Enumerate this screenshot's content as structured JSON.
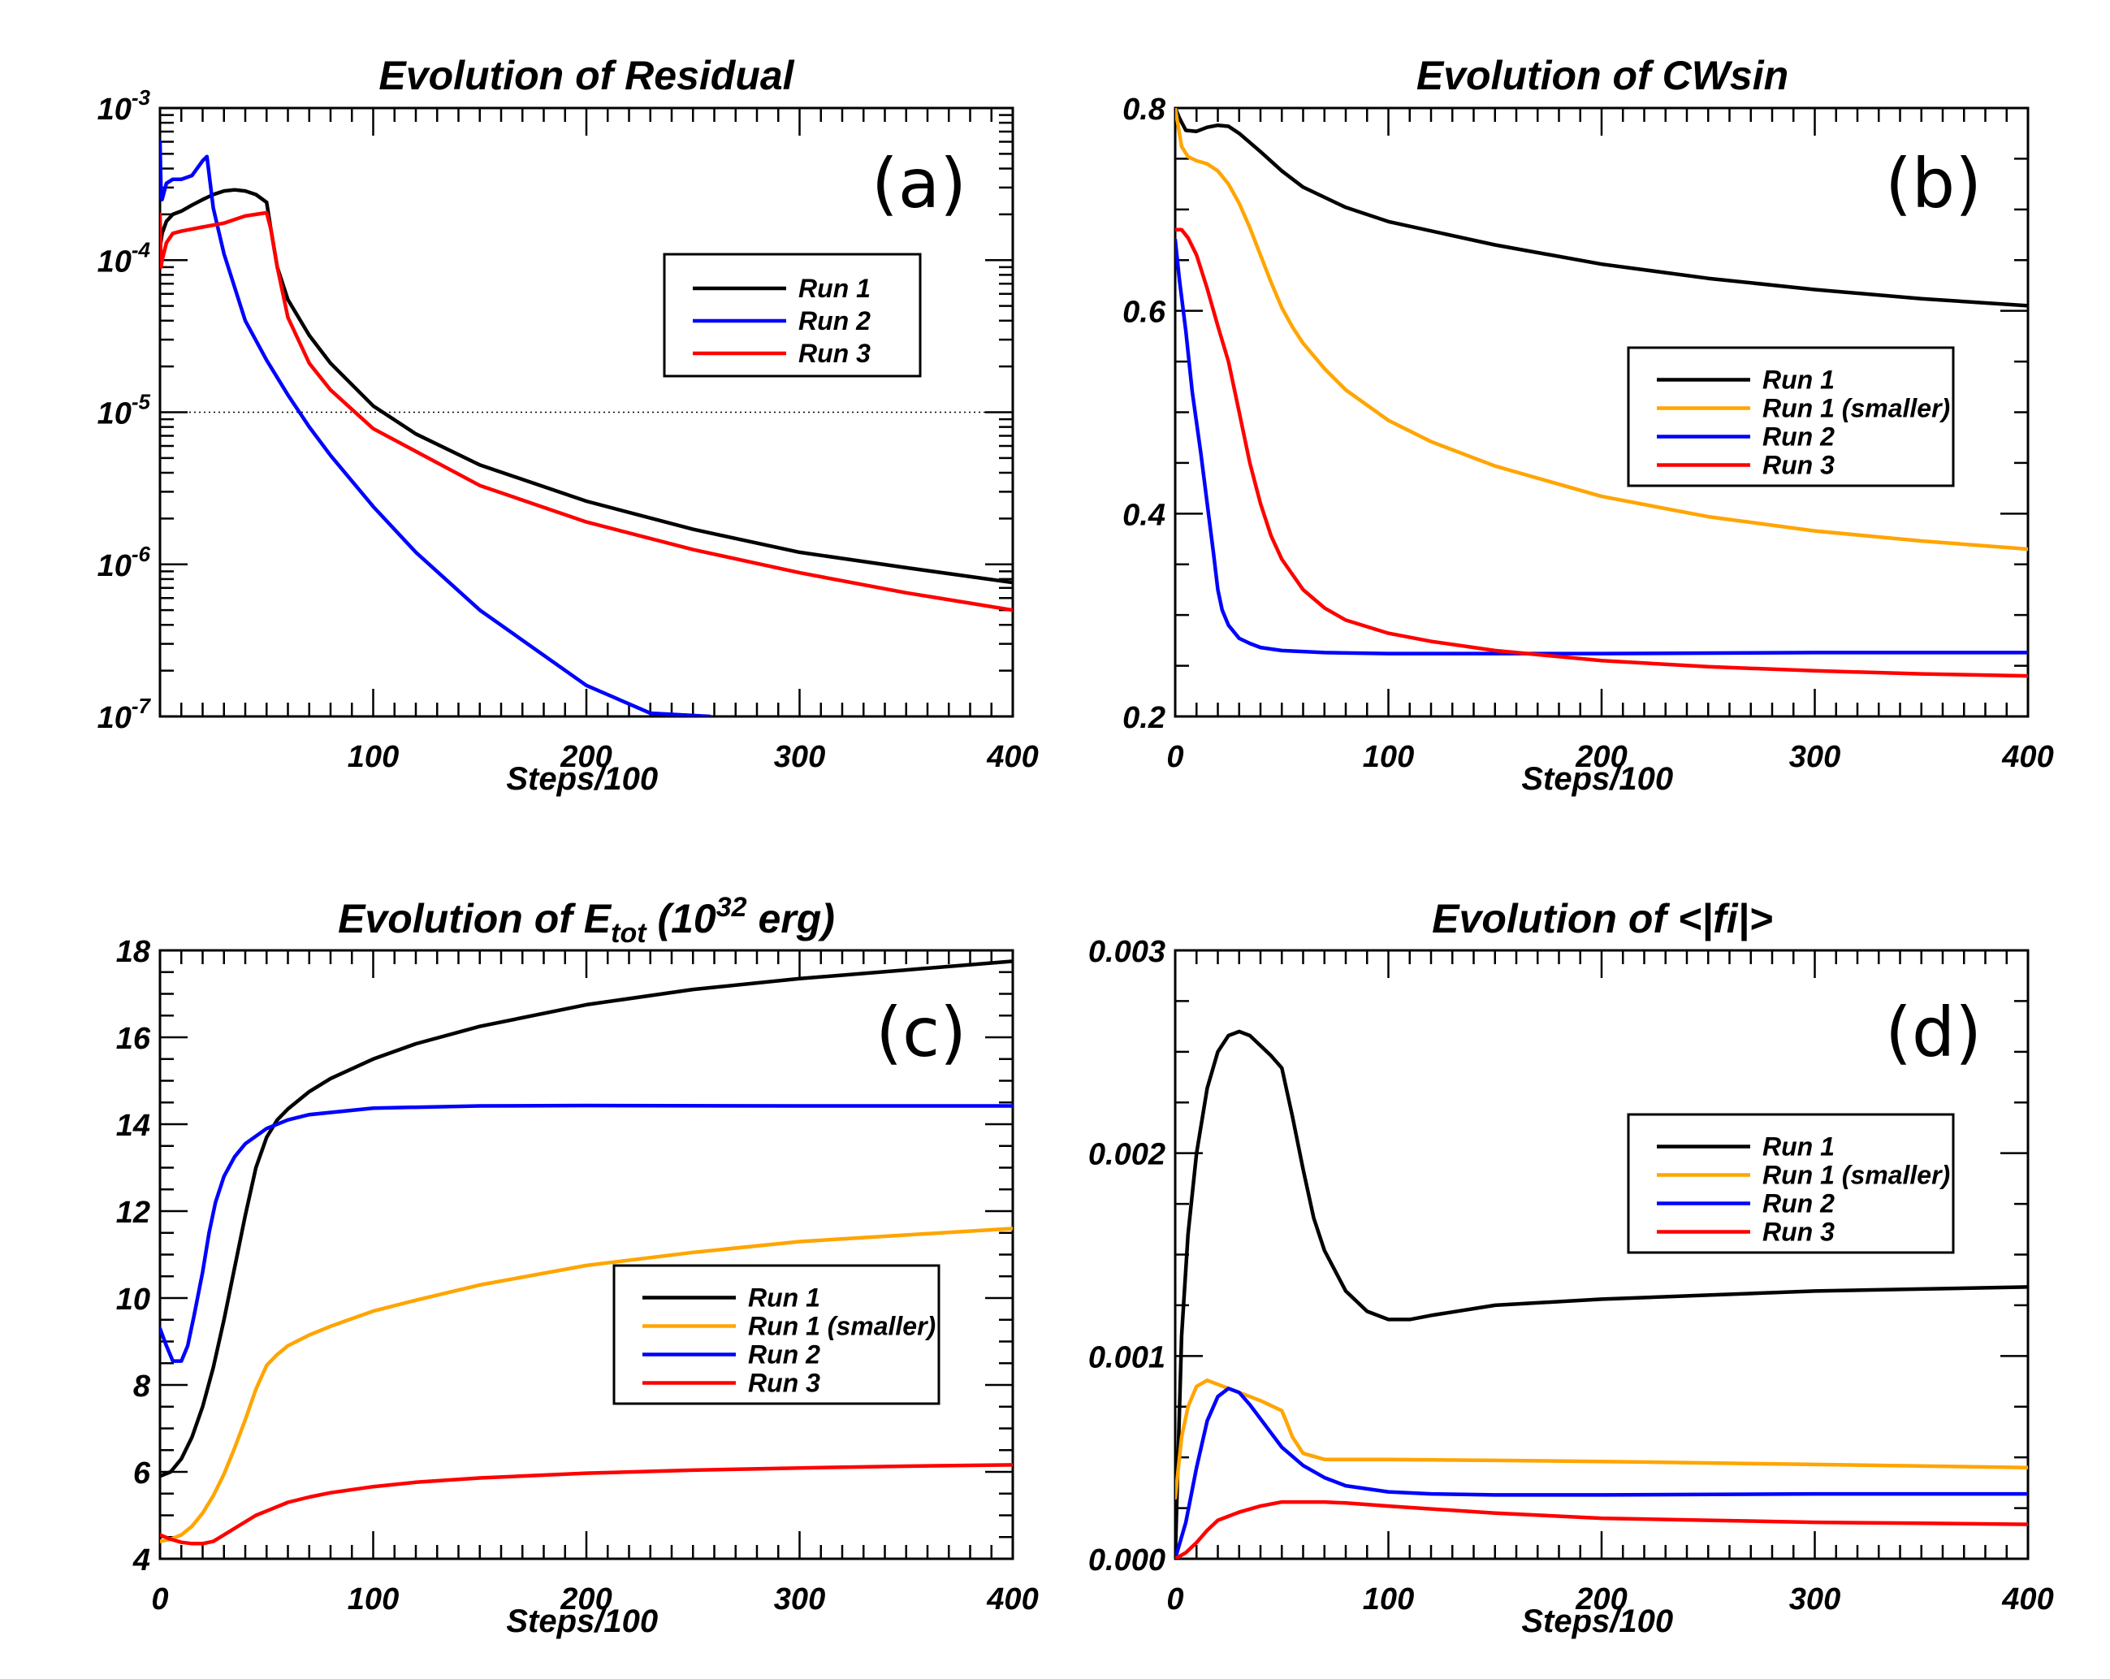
{
  "figure": {
    "colors": {
      "Run 1": "#000000",
      "Run 1 (smaller)": "#FFA500",
      "Run 2": "#0000FF",
      "Run 3": "#FF0000"
    }
  },
  "chart_data": [
    {
      "id": "a",
      "type": "line",
      "title": "Evolution of Residual",
      "panel_label": "(a)",
      "xlabel": "Steps/100",
      "ylabel": "",
      "xlim": [
        0,
        400
      ],
      "ylim": [
        1e-07,
        0.001
      ],
      "yscale": "log",
      "xticks": [
        100,
        200,
        300,
        400
      ],
      "xtick_labels": [
        "100",
        "200",
        "300",
        "400"
      ],
      "yticks": [
        1e-07,
        1e-06,
        1e-05,
        0.0001,
        0.001
      ],
      "ytick_labels": [
        [
          "10",
          "-7"
        ],
        [
          "10",
          "-6"
        ],
        [
          "10",
          "-5"
        ],
        [
          "10",
          "-4"
        ],
        [
          "10",
          "-3"
        ]
      ],
      "hline": 1e-05,
      "legend": [
        "Run 1",
        "Run 2",
        "Run 3"
      ],
      "legend_position": "top-right",
      "series": [
        {
          "name": "Run 1",
          "x": [
            0,
            1,
            3,
            6,
            10,
            15,
            20,
            25,
            30,
            35,
            40,
            45,
            50,
            52,
            55,
            60,
            70,
            80,
            100,
            120,
            150,
            200,
            250,
            300,
            350,
            400
          ],
          "y": [
            0.00012,
            0.00015,
            0.00018,
            0.0002,
            0.00021,
            0.00023,
            0.00025,
            0.00027,
            0.000285,
            0.00029,
            0.000285,
            0.00027,
            0.00024,
            0.00016,
            9e-05,
            5.5e-05,
            3.2e-05,
            2.1e-05,
            1.1e-05,
            7.2e-06,
            4.5e-06,
            2.6e-06,
            1.7e-06,
            1.2e-06,
            9.5e-07,
            7.6e-07
          ]
        },
        {
          "name": "Run 2",
          "x": [
            0,
            0.5,
            1,
            3,
            6,
            10,
            15,
            20,
            22,
            25,
            30,
            40,
            50,
            60,
            70,
            80,
            100,
            120,
            150,
            200,
            230,
            258
          ],
          "y": [
            0.0006,
            0.00028,
            0.00025,
            0.00032,
            0.00034,
            0.00034,
            0.00036,
            0.00045,
            0.00048,
            0.00022,
            0.00011,
            4e-05,
            2.2e-05,
            1.3e-05,
            8e-06,
            5.2e-06,
            2.4e-06,
            1.2e-06,
            5e-07,
            1.6e-07,
            1.05e-07,
            1e-07
          ]
        },
        {
          "name": "Run 3",
          "x": [
            0,
            0.5,
            1,
            3,
            6,
            10,
            20,
            30,
            35,
            40,
            45,
            50,
            52,
            55,
            60,
            70,
            80,
            100,
            150,
            200,
            250,
            300,
            350,
            400
          ],
          "y": [
            0.0002,
            9e-05,
            0.0001,
            0.00013,
            0.00015,
            0.000155,
            0.000165,
            0.000175,
            0.000185,
            0.000195,
            0.0002,
            0.000205,
            0.00016,
            9e-05,
            4.2e-05,
            2.1e-05,
            1.4e-05,
            7.8e-06,
            3.3e-06,
            1.9e-06,
            1.25e-06,
            8.8e-07,
            6.5e-07,
            5e-07
          ]
        }
      ]
    },
    {
      "id": "b",
      "type": "line",
      "title": "Evolution of CWsin",
      "panel_label": "(b)",
      "xlabel": "Steps/100",
      "ylabel": "",
      "xlim": [
        0,
        400
      ],
      "ylim": [
        0.2,
        0.8
      ],
      "yscale": "linear",
      "xticks": [
        0,
        100,
        200,
        300,
        400
      ],
      "xtick_labels": [
        "0",
        "100",
        "200",
        "300",
        "400"
      ],
      "yticks": [
        0.2,
        0.4,
        0.6,
        0.8
      ],
      "ytick_labels": [
        "0.2",
        "0.4",
        "0.6",
        "0.8"
      ],
      "legend": [
        "Run 1",
        "Run 1 (smaller)",
        "Run 2",
        "Run 3"
      ],
      "legend_position": "center-right",
      "series": [
        {
          "name": "Run 1",
          "x": [
            0,
            2,
            5,
            10,
            15,
            20,
            25,
            30,
            40,
            50,
            60,
            80,
            100,
            150,
            200,
            250,
            300,
            350,
            400
          ],
          "y": [
            0.8,
            0.79,
            0.778,
            0.777,
            0.781,
            0.783,
            0.782,
            0.775,
            0.757,
            0.738,
            0.722,
            0.702,
            0.688,
            0.665,
            0.646,
            0.632,
            0.621,
            0.612,
            0.605
          ]
        },
        {
          "name": "Run 1 (smaller)",
          "x": [
            0,
            3,
            6,
            10,
            15,
            20,
            25,
            30,
            35,
            40,
            45,
            50,
            55,
            60,
            70,
            80,
            100,
            120,
            150,
            200,
            250,
            300,
            350,
            400
          ],
          "y": [
            0.8,
            0.762,
            0.752,
            0.748,
            0.745,
            0.738,
            0.725,
            0.706,
            0.682,
            0.655,
            0.628,
            0.603,
            0.584,
            0.568,
            0.543,
            0.522,
            0.492,
            0.471,
            0.447,
            0.417,
            0.397,
            0.383,
            0.373,
            0.365
          ]
        },
        {
          "name": "Run 2",
          "x": [
            0,
            2,
            5,
            8,
            12,
            15,
            18,
            20,
            22,
            25,
            30,
            35,
            40,
            50,
            70,
            100,
            150,
            200,
            300,
            400
          ],
          "y": [
            0.67,
            0.63,
            0.58,
            0.52,
            0.46,
            0.41,
            0.36,
            0.325,
            0.305,
            0.29,
            0.277,
            0.272,
            0.268,
            0.265,
            0.263,
            0.262,
            0.262,
            0.262,
            0.263,
            0.263
          ]
        },
        {
          "name": "Run 3",
          "x": [
            0,
            3,
            6,
            10,
            15,
            20,
            25,
            30,
            35,
            40,
            45,
            50,
            60,
            70,
            80,
            100,
            120,
            150,
            200,
            250,
            300,
            350,
            400
          ],
          "y": [
            0.68,
            0.68,
            0.672,
            0.655,
            0.622,
            0.585,
            0.55,
            0.5,
            0.45,
            0.41,
            0.378,
            0.355,
            0.325,
            0.307,
            0.295,
            0.282,
            0.274,
            0.265,
            0.255,
            0.249,
            0.245,
            0.242,
            0.24
          ]
        }
      ]
    },
    {
      "id": "c",
      "type": "line",
      "title_main": "Evolution of E",
      "title_sub": "tot",
      "title_mid": " (10",
      "title_sup": "32",
      "title_end": " erg)",
      "panel_label": "(c)",
      "xlabel": "Steps/100",
      "ylabel": "",
      "xlim": [
        0,
        400
      ],
      "ylim": [
        4,
        18
      ],
      "yscale": "linear",
      "xticks": [
        0,
        100,
        200,
        300,
        400
      ],
      "xtick_labels": [
        "0",
        "100",
        "200",
        "300",
        "400"
      ],
      "yticks": [
        4,
        6,
        8,
        10,
        12,
        14,
        16,
        18
      ],
      "ytick_labels": [
        "4",
        "6",
        "8",
        "10",
        "12",
        "14",
        "16",
        "18"
      ],
      "legend": [
        "Run 1",
        "Run 1 (smaller)",
        "Run 2",
        "Run 3"
      ],
      "legend_position": "center-right",
      "series": [
        {
          "name": "Run 1",
          "x": [
            0,
            5,
            10,
            15,
            20,
            25,
            30,
            35,
            40,
            45,
            50,
            55,
            60,
            70,
            80,
            100,
            120,
            150,
            200,
            250,
            300,
            350,
            400
          ],
          "y": [
            5.9,
            6.0,
            6.3,
            6.8,
            7.5,
            8.4,
            9.5,
            10.7,
            11.9,
            13.0,
            13.7,
            14.1,
            14.35,
            14.75,
            15.05,
            15.5,
            15.85,
            16.25,
            16.75,
            17.1,
            17.35,
            17.55,
            17.75
          ]
        },
        {
          "name": "Run 1 (smaller)",
          "x": [
            0,
            5,
            10,
            15,
            20,
            25,
            30,
            35,
            40,
            45,
            50,
            55,
            60,
            70,
            80,
            100,
            120,
            150,
            200,
            250,
            300,
            350,
            400
          ],
          "y": [
            4.4,
            4.45,
            4.55,
            4.75,
            5.05,
            5.45,
            5.95,
            6.55,
            7.2,
            7.9,
            8.45,
            8.7,
            8.9,
            9.15,
            9.35,
            9.7,
            9.95,
            10.3,
            10.75,
            11.05,
            11.3,
            11.45,
            11.6
          ]
        },
        {
          "name": "Run 2",
          "x": [
            0,
            3,
            6,
            10,
            13,
            16,
            20,
            23,
            26,
            30,
            35,
            40,
            50,
            60,
            70,
            100,
            150,
            200,
            300,
            400
          ],
          "y": [
            9.3,
            8.9,
            8.55,
            8.55,
            8.9,
            9.6,
            10.6,
            11.5,
            12.2,
            12.8,
            13.25,
            13.55,
            13.9,
            14.1,
            14.22,
            14.37,
            14.42,
            14.43,
            14.42,
            14.42
          ]
        },
        {
          "name": "Run 3",
          "x": [
            0,
            5,
            10,
            15,
            20,
            25,
            30,
            35,
            40,
            45,
            50,
            60,
            70,
            80,
            100,
            120,
            150,
            200,
            250,
            300,
            350,
            400
          ],
          "y": [
            4.55,
            4.45,
            4.38,
            4.35,
            4.35,
            4.4,
            4.55,
            4.7,
            4.85,
            5.0,
            5.1,
            5.3,
            5.42,
            5.52,
            5.66,
            5.76,
            5.86,
            5.97,
            6.04,
            6.09,
            6.13,
            6.16
          ]
        }
      ]
    },
    {
      "id": "d",
      "type": "line",
      "title": "Evolution of <|fi|>",
      "panel_label": "(d)",
      "xlabel": "Steps/100",
      "ylabel": "",
      "xlim": [
        0,
        400
      ],
      "ylim": [
        0,
        0.003
      ],
      "yscale": "linear",
      "xticks": [
        0,
        100,
        200,
        300,
        400
      ],
      "xtick_labels": [
        "0",
        "100",
        "200",
        "300",
        "400"
      ],
      "yticks": [
        0,
        0.001,
        0.002,
        0.003
      ],
      "ytick_labels": [
        "0.000",
        "0.001",
        "0.002",
        "0.003"
      ],
      "legend": [
        "Run 1",
        "Run 1 (smaller)",
        "Run 2",
        "Run 3"
      ],
      "legend_position": "top-right",
      "series": [
        {
          "name": "Run 1",
          "x": [
            0,
            3,
            6,
            10,
            15,
            20,
            25,
            30,
            35,
            40,
            45,
            50,
            55,
            60,
            65,
            70,
            80,
            90,
            100,
            110,
            120,
            150,
            200,
            250,
            300,
            350,
            400
          ],
          "y": [
            0.0,
            0.0011,
            0.0016,
            0.002,
            0.00232,
            0.0025,
            0.00258,
            0.0026,
            0.00258,
            0.00253,
            0.00248,
            0.00242,
            0.00218,
            0.00192,
            0.00168,
            0.00152,
            0.00132,
            0.00122,
            0.00118,
            0.00118,
            0.0012,
            0.00125,
            0.00128,
            0.0013,
            0.00132,
            0.00133,
            0.00134
          ]
        },
        {
          "name": "Run 1 (smaller)",
          "x": [
            0,
            3,
            6,
            10,
            15,
            20,
            30,
            40,
            50,
            52,
            55,
            60,
            70,
            80,
            100,
            150,
            200,
            300,
            400
          ],
          "y": [
            0.0003,
            0.0006,
            0.00075,
            0.00085,
            0.00088,
            0.00086,
            0.00082,
            0.00078,
            0.00073,
            0.00068,
            0.0006,
            0.00052,
            0.00049,
            0.00049,
            0.00049,
            0.000485,
            0.00048,
            0.000465,
            0.00045
          ]
        },
        {
          "name": "Run 2",
          "x": [
            0,
            5,
            10,
            15,
            20,
            25,
            30,
            35,
            40,
            45,
            50,
            60,
            70,
            80,
            100,
            120,
            150,
            200,
            300,
            400
          ],
          "y": [
            0.0,
            0.00018,
            0.00045,
            0.00068,
            0.0008,
            0.00084,
            0.00082,
            0.00076,
            0.00069,
            0.00062,
            0.00055,
            0.00046,
            0.0004,
            0.00036,
            0.00033,
            0.00032,
            0.000315,
            0.000315,
            0.00032,
            0.00032
          ]
        },
        {
          "name": "Run 3",
          "x": [
            0,
            5,
            10,
            15,
            20,
            25,
            30,
            40,
            50,
            60,
            70,
            80,
            100,
            150,
            200,
            250,
            300,
            350,
            400
          ],
          "y": [
            0.0,
            3e-05,
            8e-05,
            0.00014,
            0.00019,
            0.00021,
            0.00023,
            0.00026,
            0.00028,
            0.00028,
            0.00028,
            0.000275,
            0.00026,
            0.000225,
            0.0002,
            0.00019,
            0.00018,
            0.000175,
            0.00017
          ]
        }
      ]
    }
  ]
}
